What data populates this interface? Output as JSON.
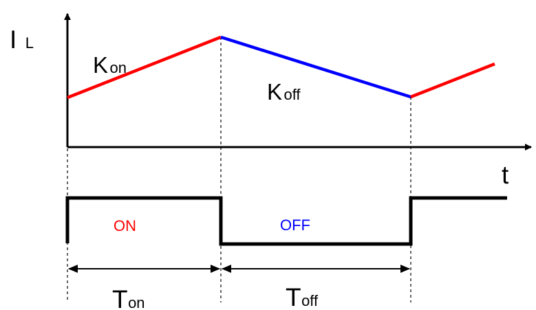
{
  "labels": {
    "y_axis_main": "I",
    "y_axis_sub": "L",
    "x_axis": "t",
    "k_on_main": "K",
    "k_on_sub": "on",
    "k_off_main": "K",
    "k_off_sub": "off",
    "state_on": "ON",
    "state_off": "OFF",
    "t_on_main": "T",
    "t_on_sub": "on",
    "t_off_main": "T",
    "t_off_sub": "off"
  },
  "colors": {
    "on_segment": "#ff0000",
    "off_segment": "#0000ff",
    "axis": "#000000",
    "state_on": "#ff0000",
    "state_off": "#0000ff"
  }
}
